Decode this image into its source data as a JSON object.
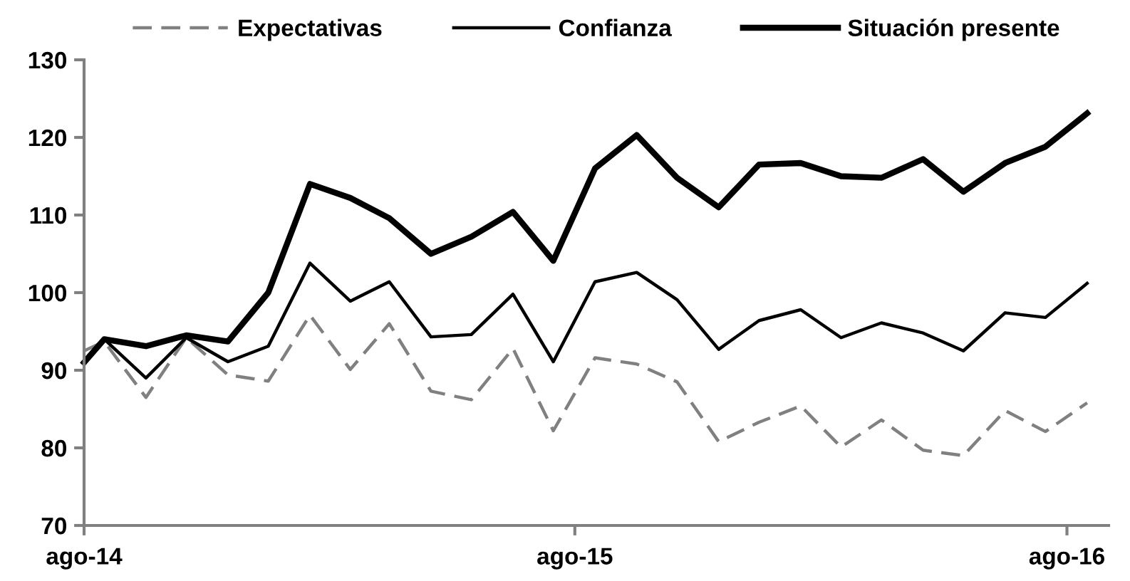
{
  "chart_data": {
    "type": "line",
    "x": [
      "2014-08-01",
      "2014-08-16",
      "2014-09-16",
      "2014-10-16",
      "2014-11-16",
      "2014-12-16",
      "2015-01-16",
      "2015-02-15",
      "2015-03-16",
      "2015-04-16",
      "2015-05-16",
      "2015-06-16",
      "2015-07-16",
      "2015-08-16",
      "2015-09-16",
      "2015-10-16",
      "2015-11-16",
      "2015-12-16",
      "2016-01-16",
      "2016-02-15",
      "2016-03-16",
      "2016-04-16",
      "2016-05-16",
      "2016-06-16",
      "2016-07-16",
      "2016-08-16"
    ],
    "series": [
      {
        "name": "Expectativas",
        "color": "#808080",
        "line_style": "dashed",
        "values": [
          92.5,
          93.7,
          86.5,
          94.2,
          89.4,
          88.6,
          97.1,
          90.1,
          96.0,
          87.3,
          86.2,
          92.8,
          82.2,
          91.6,
          90.8,
          88.5,
          80.8,
          83.3,
          85.4,
          80.1,
          83.6,
          79.7,
          79.0,
          84.8,
          82.1,
          85.8
        ]
      },
      {
        "name": "Confianza",
        "color": "#000000",
        "line_style": "solid",
        "values": [
          91.0,
          94.0,
          89.0,
          94.2,
          91.1,
          93.1,
          103.8,
          98.9,
          101.4,
          94.3,
          94.6,
          99.8,
          91.1,
          101.4,
          102.6,
          99.1,
          92.7,
          96.4,
          97.8,
          94.2,
          96.1,
          94.8,
          92.5,
          97.4,
          96.8,
          101.2
        ]
      },
      {
        "name": "Situación presente",
        "color": "#000000",
        "line_style": "solid",
        "values": [
          91.0,
          94.0,
          93.1,
          94.5,
          93.7,
          100.0,
          114.0,
          112.2,
          109.6,
          105.0,
          107.2,
          110.4,
          104.1,
          116.0,
          120.3,
          114.8,
          111.0,
          116.5,
          116.7,
          115.0,
          114.8,
          117.2,
          113.0,
          116.7,
          118.8,
          123.1
        ]
      }
    ],
    "xlim": [
      "2014-08-01",
      "2016-09-01"
    ],
    "xticks": [
      {
        "value": "2014-08-01",
        "label": "ago-14"
      },
      {
        "value": "2015-08-01",
        "label": "ago-15"
      },
      {
        "value": "2016-08-01",
        "label": "ago-16"
      }
    ],
    "ylim": [
      70,
      130
    ],
    "yticks": [
      70,
      80,
      90,
      100,
      110,
      120,
      130
    ],
    "legend": "top",
    "grid": false,
    "marker": "none"
  }
}
